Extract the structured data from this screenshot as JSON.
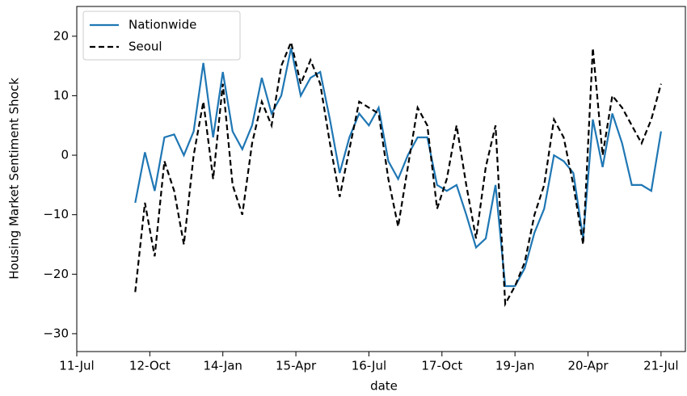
{
  "chart_data": {
    "type": "line",
    "xlabel": "date",
    "ylabel": "Housing Market Sentiment Shock",
    "x": [
      "2012-07",
      "2012-09",
      "2012-11",
      "2013-01",
      "2013-03",
      "2013-05",
      "2013-07",
      "2013-09",
      "2013-11",
      "2014-01",
      "2014-03",
      "2014-05",
      "2014-07",
      "2014-09",
      "2014-11",
      "2015-01",
      "2015-03",
      "2015-05",
      "2015-07",
      "2015-09",
      "2015-11",
      "2016-01",
      "2016-03",
      "2016-05",
      "2016-07",
      "2016-09",
      "2016-11",
      "2017-01",
      "2017-03",
      "2017-05",
      "2017-07",
      "2017-09",
      "2017-11",
      "2018-01",
      "2018-03",
      "2018-05",
      "2018-07",
      "2018-09",
      "2018-11",
      "2019-01",
      "2019-03",
      "2019-05",
      "2019-07",
      "2019-09",
      "2019-11",
      "2020-01",
      "2020-03",
      "2020-05",
      "2020-07",
      "2020-09",
      "2020-11",
      "2021-01",
      "2021-03",
      "2021-05",
      "2021-07"
    ],
    "series": [
      {
        "name": "Nationwide",
        "color": "#1f77b4",
        "dash": "solid",
        "values": [
          -8,
          0.5,
          -6,
          3,
          3.5,
          0,
          4,
          15.5,
          3,
          14,
          4,
          1,
          5,
          13,
          7,
          10,
          18,
          10,
          13,
          14,
          6,
          -3,
          3,
          7,
          5,
          8,
          -1,
          -4,
          0,
          3,
          3,
          -5,
          -6,
          -5,
          -10,
          -15.5,
          -14,
          -5,
          -22,
          -22,
          -19,
          -13,
          -9,
          0,
          -1,
          -3,
          -14,
          6,
          -2,
          7,
          2,
          -5,
          -5,
          -6,
          4
        ]
      },
      {
        "name": "Seoul",
        "color": "#000000",
        "dash": "dashed",
        "values": [
          -23,
          -8,
          -17,
          -1,
          -6,
          -15,
          0,
          9,
          -4,
          12,
          -5,
          -10,
          2,
          9,
          5,
          15,
          19,
          12,
          16,
          12,
          2,
          -7,
          1,
          9,
          8,
          7,
          -4,
          -12,
          -2,
          8,
          5,
          -9,
          -4,
          5,
          -5,
          -14,
          -2,
          5,
          -25,
          -22,
          -18,
          -10,
          -5,
          6,
          3,
          -5,
          -15,
          18,
          0,
          10,
          8,
          5,
          2,
          6,
          12
        ]
      }
    ],
    "xlim": [
      "2011-07",
      "2021-12"
    ],
    "xticks": [
      {
        "value": "2011-07",
        "label": "11-Jul"
      },
      {
        "value": "2012-10",
        "label": "12-Oct"
      },
      {
        "value": "2014-01",
        "label": "14-Jan"
      },
      {
        "value": "2015-04",
        "label": "15-Apr"
      },
      {
        "value": "2016-07",
        "label": "16-Jul"
      },
      {
        "value": "2017-10",
        "label": "17-Oct"
      },
      {
        "value": "2019-01",
        "label": "19-Jan"
      },
      {
        "value": "2020-04",
        "label": "20-Apr"
      },
      {
        "value": "2021-07",
        "label": "21-Jul"
      }
    ],
    "ylim": [
      -33,
      25
    ],
    "yticks": [
      {
        "value": -30,
        "label": "−30"
      },
      {
        "value": -20,
        "label": "−20"
      },
      {
        "value": -10,
        "label": "−10"
      },
      0,
      10,
      20
    ],
    "legend": "upper left"
  }
}
